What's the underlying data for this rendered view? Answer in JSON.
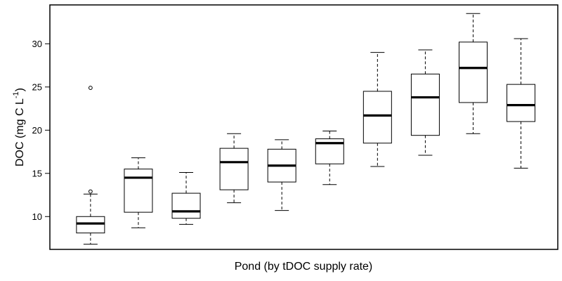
{
  "chart_data": {
    "type": "box",
    "title": "",
    "xlabel": "Pond (by tDOC supply rate)",
    "ylabel": {
      "main": "DOC (mg C L",
      "superscript": "-1",
      "close": ")"
    },
    "ylim": [
      6.2,
      34.5
    ],
    "yticks": [
      10,
      15,
      20,
      25,
      30
    ],
    "grid": false,
    "boxes": [
      {
        "whisker_low": 6.8,
        "q1": 8.1,
        "median": 9.2,
        "q3": 10.0,
        "whisker_high": 12.6,
        "outliers": [
          12.9,
          24.9
        ]
      },
      {
        "whisker_low": 8.7,
        "q1": 10.5,
        "median": 14.5,
        "q3": 15.5,
        "whisker_high": 16.8,
        "outliers": []
      },
      {
        "whisker_low": 9.1,
        "q1": 9.8,
        "median": 10.6,
        "q3": 12.7,
        "whisker_high": 15.1,
        "outliers": []
      },
      {
        "whisker_low": 11.6,
        "q1": 13.1,
        "median": 16.3,
        "q3": 17.9,
        "whisker_high": 19.6,
        "outliers": []
      },
      {
        "whisker_low": 10.7,
        "q1": 14.0,
        "median": 15.9,
        "q3": 17.8,
        "whisker_high": 18.9,
        "outliers": []
      },
      {
        "whisker_low": 13.7,
        "q1": 16.1,
        "median": 18.5,
        "q3": 19.0,
        "whisker_high": 19.9,
        "outliers": []
      },
      {
        "whisker_low": 15.8,
        "q1": 18.5,
        "median": 21.7,
        "q3": 24.5,
        "whisker_high": 29.0,
        "outliers": []
      },
      {
        "whisker_low": 17.1,
        "q1": 19.4,
        "median": 23.8,
        "q3": 26.5,
        "whisker_high": 29.3,
        "outliers": []
      },
      {
        "whisker_low": 19.6,
        "q1": 23.2,
        "median": 27.2,
        "q3": 30.2,
        "whisker_high": 33.5,
        "outliers": []
      },
      {
        "whisker_low": 15.6,
        "q1": 21.0,
        "median": 22.9,
        "q3": 25.3,
        "whisker_high": 30.6,
        "outliers": []
      }
    ]
  }
}
